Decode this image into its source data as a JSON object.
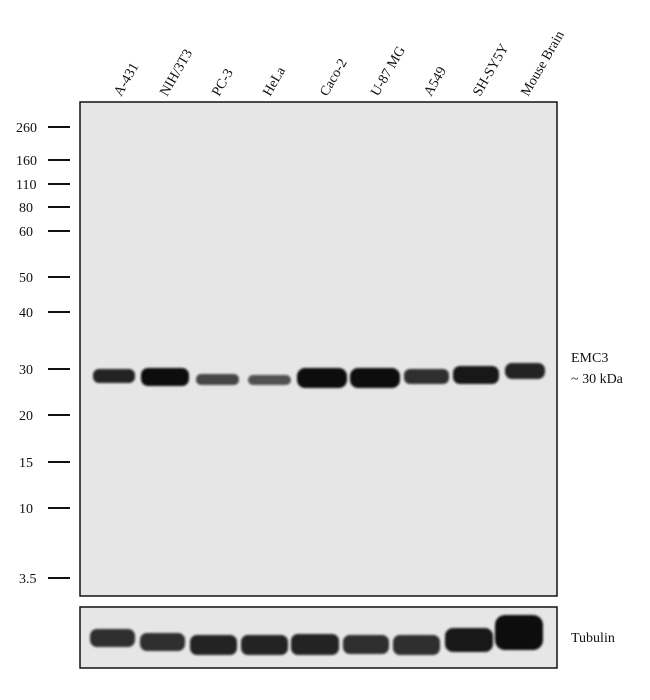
{
  "lanes": [
    "A-431",
    "NIH/3T3",
    "PC-3",
    "HeLa",
    "Caco-2",
    "U-87 MG",
    "A549",
    "SH-SY5Y",
    "Mouse Brain"
  ],
  "markers": [
    "260",
    "160",
    "110",
    "80",
    "60",
    "50",
    "40",
    "30",
    "20",
    "15",
    "10",
    "3.5"
  ],
  "target": {
    "name": "EMC3",
    "size": "~ 30 kDa",
    "band_intensity": [
      0.9,
      1.0,
      0.75,
      0.7,
      1.0,
      1.0,
      0.85,
      0.95,
      0.9
    ]
  },
  "loading_control": {
    "name": "Tubulin",
    "band_intensity": [
      0.85,
      0.85,
      0.9,
      0.9,
      0.9,
      0.85,
      0.85,
      0.95,
      1.0
    ]
  },
  "colors": {
    "membrane": "#e6e6e6",
    "band": "#0d0d0d",
    "frame": "#111111"
  }
}
